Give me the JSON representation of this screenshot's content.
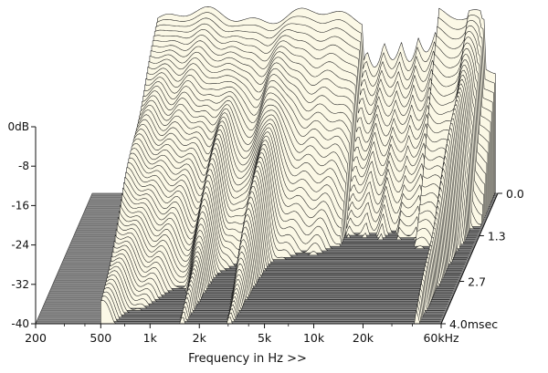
{
  "chart_data": {
    "type": "waterfall",
    "xlabel": "Frequency in Hz >>",
    "x_scale": "log",
    "xlim": [
      200,
      60000
    ],
    "x_ticks": [
      {
        "value": 200,
        "label": "200"
      },
      {
        "value": 500,
        "label": "500"
      },
      {
        "value": 1000,
        "label": "1k"
      },
      {
        "value": 2000,
        "label": "2k"
      },
      {
        "value": 5000,
        "label": "5k"
      },
      {
        "value": 10000,
        "label": "10k"
      },
      {
        "value": 20000,
        "label": "20k"
      },
      {
        "value": 60000,
        "label": "60kHz"
      }
    ],
    "ylim": [
      -40,
      0
    ],
    "y_ticks": [
      {
        "value": 0,
        "label": "0dB"
      },
      {
        "value": -8,
        "label": "-8"
      },
      {
        "value": -16,
        "label": "-16"
      },
      {
        "value": -24,
        "label": "-24"
      },
      {
        "value": -32,
        "label": "-32"
      },
      {
        "value": -40,
        "label": "-40"
      }
    ],
    "zlim": [
      0,
      4.0
    ],
    "z_ticks": [
      {
        "value": 0,
        "label": "0.0"
      },
      {
        "value": 1.3,
        "label": "1.3"
      },
      {
        "value": 2.7,
        "label": "2.7"
      },
      {
        "value": 4.0,
        "label": "4.0msec"
      }
    ],
    "slice_count": 60,
    "floor_color": "#8a8a8a",
    "curve_fill": "#fbf8e6",
    "line_color": "#1a1a1a"
  }
}
